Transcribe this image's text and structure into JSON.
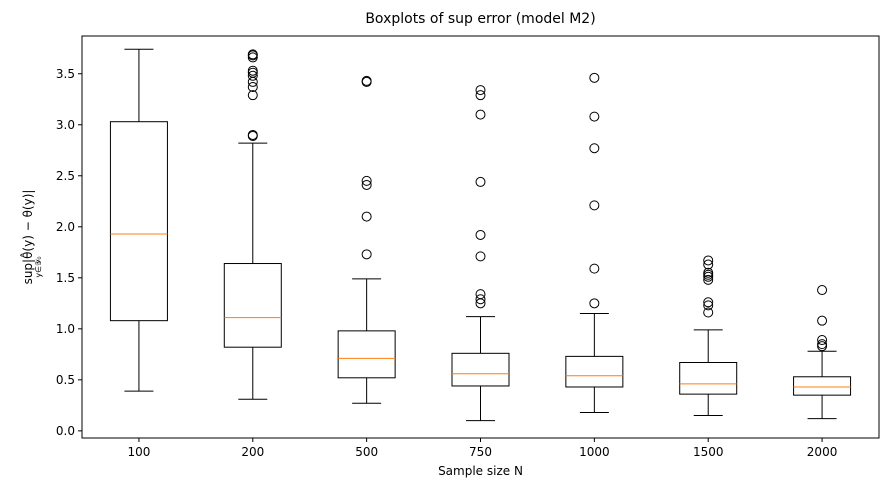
{
  "chart_data": {
    "type": "boxplot",
    "title": "Boxplots of sup error (model M2)",
    "xlabel": "Sample size N",
    "ylabel_main": "sup|θ̂(y) − θ(y)|",
    "ylabel_sub": "y∈𝒴₀",
    "categories": [
      "100",
      "200",
      "500",
      "750",
      "1000",
      "1500",
      "2000"
    ],
    "ylim": [
      -0.07,
      3.87
    ],
    "yticks": [
      0.0,
      0.5,
      1.0,
      1.5,
      2.0,
      2.5,
      3.0,
      3.5
    ],
    "ytick_labels": [
      "0.0",
      "0.5",
      "1.0",
      "1.5",
      "2.0",
      "2.5",
      "3.0",
      "3.5"
    ],
    "grid": false,
    "box_color": "#000000",
    "median_color": "#ff7f0e",
    "boxes": [
      {
        "label": "100",
        "whisker_low": 0.39,
        "q1": 1.08,
        "median": 1.93,
        "q3": 3.03,
        "whisker_high": 3.74,
        "outliers": []
      },
      {
        "label": "200",
        "whisker_low": 0.31,
        "q1": 0.82,
        "median": 1.11,
        "q3": 1.64,
        "whisker_high": 2.82,
        "outliers": [
          2.89,
          2.9,
          3.29,
          3.37,
          3.42,
          3.48,
          3.51,
          3.53,
          3.66,
          3.68,
          3.69
        ]
      },
      {
        "label": "500",
        "whisker_low": 0.27,
        "q1": 0.52,
        "median": 0.71,
        "q3": 0.98,
        "whisker_high": 1.49,
        "outliers": [
          1.73,
          2.1,
          2.41,
          2.45,
          3.42,
          3.43
        ]
      },
      {
        "label": "750",
        "whisker_low": 0.1,
        "q1": 0.44,
        "median": 0.56,
        "q3": 0.76,
        "whisker_high": 1.12,
        "outliers": [
          1.25,
          1.29,
          1.34,
          1.71,
          1.92,
          2.44,
          3.1,
          3.29,
          3.34
        ]
      },
      {
        "label": "1000",
        "whisker_low": 0.18,
        "q1": 0.43,
        "median": 0.54,
        "q3": 0.73,
        "whisker_high": 1.15,
        "outliers": [
          1.25,
          1.59,
          2.21,
          2.77,
          3.08,
          3.46
        ]
      },
      {
        "label": "1500",
        "whisker_low": 0.15,
        "q1": 0.36,
        "median": 0.46,
        "q3": 0.67,
        "whisker_high": 0.99,
        "outliers": [
          1.16,
          1.23,
          1.26,
          1.48,
          1.51,
          1.53,
          1.55,
          1.63,
          1.67
        ]
      },
      {
        "label": "2000",
        "whisker_low": 0.12,
        "q1": 0.35,
        "median": 0.43,
        "q3": 0.53,
        "whisker_high": 0.78,
        "outliers": [
          0.83,
          0.85,
          0.89,
          1.08,
          1.38
        ]
      }
    ]
  }
}
